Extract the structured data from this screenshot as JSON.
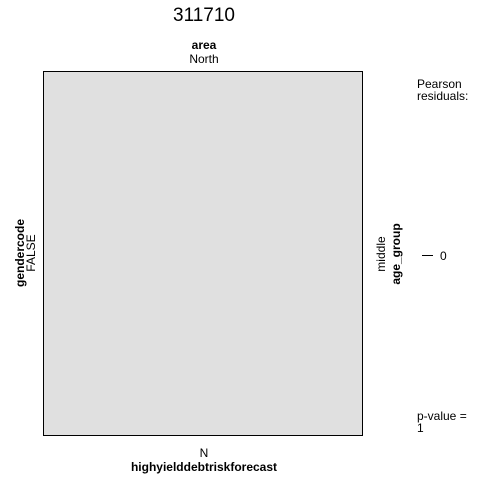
{
  "chart_data": {
    "type": "mosaic",
    "title": "311710",
    "top_variable": "area",
    "top_level": "North",
    "left_variable": "gendercode",
    "left_level": "FALSE",
    "right_variable": "age_group",
    "right_level": "middle",
    "bottom_variable": "highyielddebtriskforecast",
    "bottom_level": "N",
    "cells": [
      {
        "area": "North",
        "gendercode": "FALSE",
        "age_group": "middle",
        "highyielddebtriskforecast": "N",
        "residual": 0,
        "fill": "#e0e0e0"
      }
    ],
    "legend": {
      "title_line1": "Pearson",
      "title_line2": "residuals:",
      "ticks": [
        "0"
      ]
    },
    "p_value_line1": "p-value =",
    "p_value_line2": "1"
  }
}
